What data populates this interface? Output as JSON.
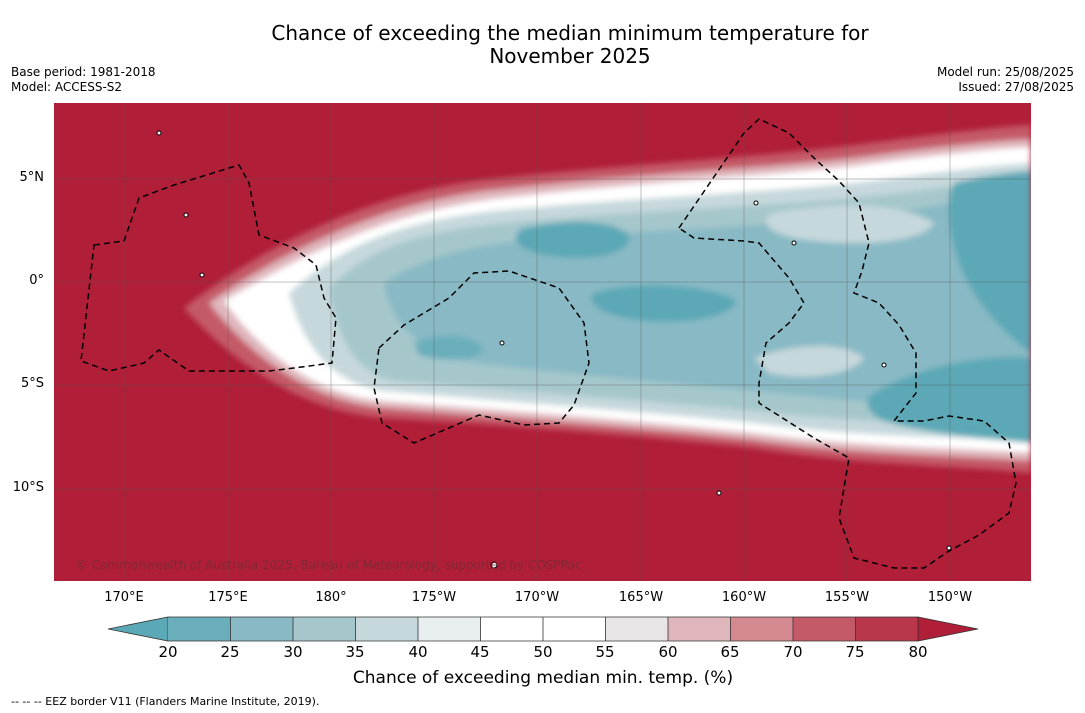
{
  "title_line1": "Chance of exceeding the median minimum temperature for",
  "title_line2": "November 2025",
  "meta": {
    "base_period": "Base period: 1981-2018",
    "model": "Model: ACCESS-S2",
    "model_run": "Model run: 25/08/2025",
    "issued": "Issued: 27/08/2025"
  },
  "map": {
    "lat_labels": [
      "5°N",
      "0°",
      "5°S",
      "10°S"
    ],
    "lon_labels": [
      "170°E",
      "175°E",
      "180°",
      "175°W",
      "170°W",
      "165°W",
      "160°W",
      "155°W",
      "150°W"
    ],
    "copyright": "© Commonwealth of Australia 2025, Bureau of Meteorology, supported by COSPPac"
  },
  "colorbar": {
    "ticks": [
      "20",
      "25",
      "30",
      "35",
      "40",
      "45",
      "50",
      "55",
      "60",
      "65",
      "70",
      "75",
      "80"
    ],
    "colors": [
      "#5ba8b6",
      "#6aaebb",
      "#88b9c4",
      "#a5c7cc",
      "#c6d8dc",
      "#e9eff1",
      "#ffffff",
      "#ffffff",
      "#e7e5e6",
      "#dfb6bc",
      "#d48890",
      "#c45a67",
      "#b8374a",
      "#b01e38"
    ],
    "label": "Chance of exceeding median min. temp. (%)"
  },
  "eez_note": "--  --  -- EEZ border V11 (Flanders Marine Institute, 2019)."
}
